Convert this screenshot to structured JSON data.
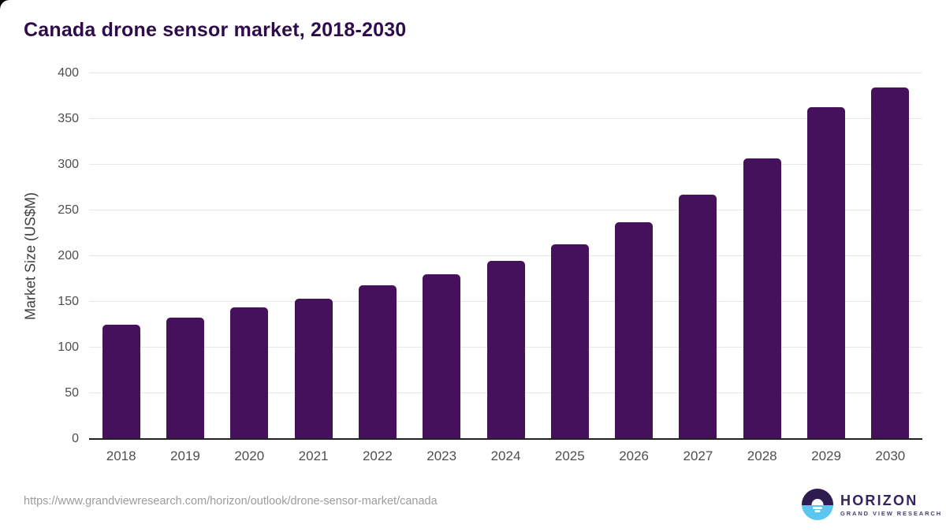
{
  "page": {
    "title": "Canada drone sensor market, 2018-2030"
  },
  "chart_data": {
    "type": "bar",
    "title": "Canada drone sensor market, 2018-2030",
    "categories": [
      "2018",
      "2019",
      "2020",
      "2021",
      "2022",
      "2023",
      "2024",
      "2025",
      "2026",
      "2027",
      "2028",
      "2029",
      "2030"
    ],
    "values": [
      124,
      132,
      143,
      153,
      167,
      179,
      194,
      212,
      236,
      266,
      306,
      362,
      384
    ],
    "xlabel": "",
    "ylabel": "Market Size (US$M)",
    "ylim": [
      0,
      400
    ],
    "yticks": [
      0,
      50,
      100,
      150,
      200,
      250,
      300,
      350,
      400
    ],
    "grid": true,
    "legend": "none",
    "bar_color": "#45115c",
    "gridline_color": "#e8e8e8",
    "axis_line_color": "#212121",
    "tick_label_color": "#4e4e4e",
    "title_color": "#2f0a4c"
  },
  "footer": {
    "source_url": "https://www.grandviewresearch.com/horizon/outlook/drone-sensor-market/canada",
    "logo": {
      "name": "HORIZON",
      "subtitle": "GRAND VIEW RESEARCH",
      "icon": "horizon-sunrise-icon",
      "icon_dark_color": "#2f1c4e",
      "icon_blue_color": "#5bc6f0"
    }
  }
}
